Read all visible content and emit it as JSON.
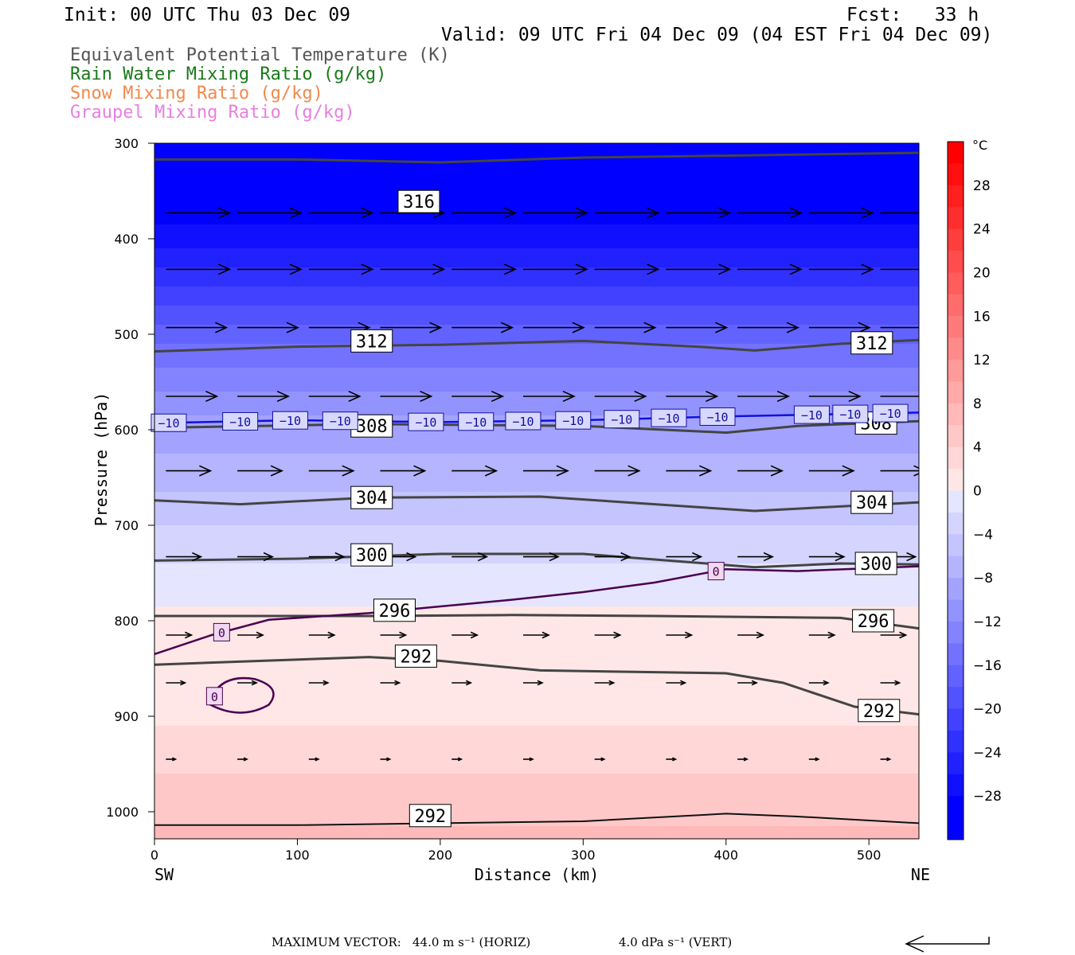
{
  "header": {
    "init": "Init: 00 UTC Thu 03 Dec 09",
    "fcst": "Fcst:   33 h",
    "valid": "Valid: 09 UTC Fri 04 Dec 09 (04 EST Fri 04 Dec 09)"
  },
  "legend": [
    {
      "label": "Equivalent Potential Temperature (K)",
      "color": "#555555"
    },
    {
      "label": "Rain Water Mixing Ratio (g/kg)",
      "color": "#1a7a1a"
    },
    {
      "label": "Snow Mixing Ratio (g/kg)",
      "color": "#f08a4b"
    },
    {
      "label": "Graupel Mixing Ratio (g/kg)",
      "color": "#e87fe0"
    }
  ],
  "footer": {
    "max_vector_label": "MAXIMUM VECTOR:",
    "horiz": "44.0 m s⁻¹ (HORIZ)",
    "vert": "4.0 dPa s⁻¹ (VERT)"
  },
  "chart_data": {
    "type": "heatmap",
    "xlabel": "Distance (km)",
    "ylabel": "Pressure (hPa)",
    "xlim": [
      0,
      535
    ],
    "ylim": [
      1030,
      300
    ],
    "x_ticks": [
      0,
      100,
      200,
      300,
      400,
      500
    ],
    "y_ticks": [
      300,
      400,
      500,
      600,
      700,
      800,
      900,
      1000
    ],
    "x_end_labels": {
      "left": "SW",
      "right": "NE"
    },
    "colorbar": {
      "unit": "°C",
      "tick_labels": [
        "28",
        "24",
        "20",
        "16",
        "12",
        "8",
        "4",
        "0",
        "−4",
        "−8",
        "−12",
        "−16",
        "−20",
        "−24",
        "−28"
      ],
      "levels": [
        -32,
        -30,
        -28,
        -26,
        -24,
        -22,
        -20,
        -18,
        -16,
        -14,
        -12,
        -10,
        -8,
        -6,
        -4,
        -2,
        0,
        2,
        4,
        6,
        8,
        10,
        12,
        14,
        16,
        18,
        20,
        22,
        24,
        26,
        28,
        30,
        32
      ]
    },
    "temperature_profile": [
      {
        "p": 300,
        "t": -33
      },
      {
        "p": 360,
        "t": -30
      },
      {
        "p": 400,
        "t": -27
      },
      {
        "p": 450,
        "t": -22
      },
      {
        "p": 500,
        "t": -17
      },
      {
        "p": 550,
        "t": -13
      },
      {
        "p": 600,
        "t": -9
      },
      {
        "p": 650,
        "t": -7
      },
      {
        "p": 700,
        "t": -4
      },
      {
        "p": 750,
        "t": -1.5
      },
      {
        "p": 800,
        "t": 0.5
      },
      {
        "p": 900,
        "t": 1.5
      },
      {
        "p": 950,
        "t": 3.5
      },
      {
        "p": 1000,
        "t": 5.5
      },
      {
        "p": 1030,
        "t": 6.5
      }
    ],
    "theta_e_contours": [
      {
        "label": "316",
        "points": [
          [
            0,
            317
          ],
          [
            100,
            317
          ],
          [
            200,
            320
          ],
          [
            300,
            315
          ],
          [
            400,
            313
          ],
          [
            535,
            310
          ]
        ],
        "labels_at": [
          [
            185,
            361
          ]
        ]
      },
      {
        "label": "312",
        "points": [
          [
            0,
            518
          ],
          [
            100,
            513
          ],
          [
            200,
            511
          ],
          [
            300,
            507
          ],
          [
            380,
            513
          ],
          [
            420,
            517
          ],
          [
            480,
            510
          ],
          [
            535,
            506
          ]
        ],
        "labels_at": [
          [
            152,
            507
          ],
          [
            502,
            509
          ]
        ]
      },
      {
        "label": "308",
        "points": [
          [
            0,
            598
          ],
          [
            150,
            594
          ],
          [
            300,
            596
          ],
          [
            400,
            603
          ],
          [
            450,
            596
          ],
          [
            535,
            591
          ]
        ],
        "labels_at": [
          [
            152,
            596
          ],
          [
            505,
            593
          ]
        ]
      },
      {
        "label": "304",
        "points": [
          [
            0,
            674
          ],
          [
            60,
            678
          ],
          [
            150,
            671
          ],
          [
            270,
            670
          ],
          [
            420,
            685
          ],
          [
            535,
            676
          ]
        ],
        "labels_at": [
          [
            152,
            671
          ],
          [
            502,
            676
          ]
        ]
      },
      {
        "label": "300",
        "points": [
          [
            0,
            737
          ],
          [
            100,
            735
          ],
          [
            200,
            730
          ],
          [
            300,
            730
          ],
          [
            420,
            744
          ],
          [
            480,
            740
          ],
          [
            535,
            741
          ]
        ],
        "labels_at": [
          [
            152,
            731
          ],
          [
            505,
            740
          ]
        ]
      },
      {
        "label": "296",
        "points": [
          [
            0,
            795
          ],
          [
            150,
            795
          ],
          [
            250,
            794
          ],
          [
            350,
            795
          ],
          [
            480,
            797
          ],
          [
            535,
            808
          ]
        ],
        "labels_at": [
          [
            168,
            789
          ],
          [
            503,
            800
          ]
        ]
      },
      {
        "label": "292",
        "points": [
          [
            0,
            846
          ],
          [
            150,
            838
          ],
          [
            200,
            842
          ],
          [
            270,
            852
          ],
          [
            400,
            855
          ],
          [
            440,
            865
          ],
          [
            490,
            890
          ],
          [
            535,
            898
          ]
        ],
        "labels_at": [
          [
            183,
            837
          ],
          [
            507,
            894
          ]
        ]
      },
      {
        "label": "292",
        "points": [
          [
            0,
            1014
          ],
          [
            100,
            1014
          ],
          [
            200,
            1012
          ],
          [
            300,
            1010
          ],
          [
            400,
            1002
          ],
          [
            450,
            1005
          ],
          [
            535,
            1012
          ]
        ],
        "labels_at": [
          [
            193,
            1004
          ]
        ]
      }
    ],
    "isotherm_labels": {
      "minus10": "−10",
      "zero": "0"
    },
    "isotherm_minus10": [
      [
        0,
        593
      ],
      [
        100,
        590
      ],
      [
        200,
        592
      ],
      [
        300,
        590
      ],
      [
        400,
        586
      ],
      [
        535,
        582
      ]
    ],
    "isotherm_zero": [
      [
        0,
        835
      ],
      [
        40,
        815
      ],
      [
        80,
        799
      ],
      [
        150,
        792
      ],
      [
        250,
        778
      ],
      [
        300,
        770
      ],
      [
        350,
        760
      ],
      [
        400,
        746
      ],
      [
        450,
        748
      ],
      [
        535,
        743
      ]
    ],
    "vectors": [
      {
        "p": 373,
        "x": [
          0,
          100,
          200,
          300,
          400,
          500
        ],
        "u": 1.0
      },
      {
        "p": 432,
        "x": [
          0,
          100,
          200,
          300,
          400,
          500
        ],
        "u": 1.0
      },
      {
        "p": 493,
        "x": [
          0,
          100,
          200,
          300,
          400,
          500
        ],
        "u": 0.95
      },
      {
        "p": 565,
        "x": [
          0,
          100,
          200,
          300,
          400,
          500
        ],
        "u": 0.8
      },
      {
        "p": 643,
        "x": [
          0,
          100,
          200,
          300,
          400,
          500
        ],
        "u": 0.7
      },
      {
        "p": 733,
        "x": [
          0,
          100,
          200,
          300,
          400,
          500
        ],
        "u": 0.55
      },
      {
        "p": 815,
        "x": [
          0,
          100,
          200,
          300,
          400,
          500
        ],
        "u": 0.4
      },
      {
        "p": 865,
        "x": [
          0,
          100,
          200,
          300,
          400,
          500
        ],
        "u": 0.3
      },
      {
        "p": 945,
        "x": [
          0,
          100,
          200,
          300,
          400,
          500
        ],
        "u": 0.15
      }
    ]
  }
}
